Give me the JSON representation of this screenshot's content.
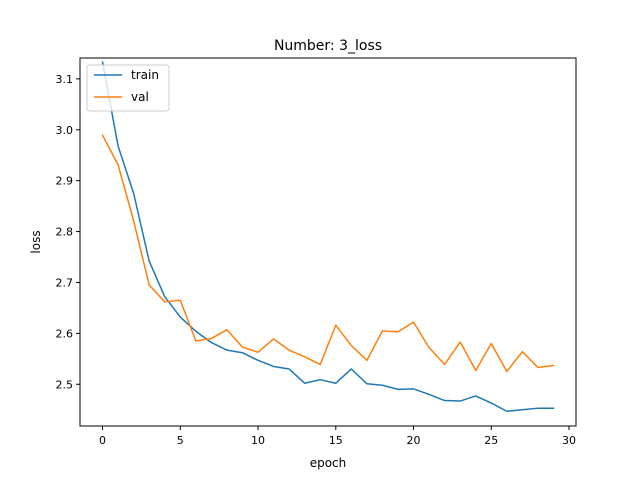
{
  "chart_data": {
    "type": "line",
    "title": "Number: 3_loss",
    "xlabel": "epoch",
    "ylabel": "loss",
    "xlim": [
      -1.45,
      30.45
    ],
    "ylim": [
      2.418,
      3.141
    ],
    "xticks": [
      0,
      5,
      10,
      15,
      20,
      25,
      30
    ],
    "yticks": [
      2.5,
      2.6,
      2.7,
      2.8,
      2.9,
      3.0,
      3.1
    ],
    "xtick_labels": [
      "0",
      "5",
      "10",
      "15",
      "20",
      "25",
      "30"
    ],
    "ytick_labels": [
      "2.5",
      "2.6",
      "2.7",
      "2.8",
      "2.9",
      "3.0",
      "3.1"
    ],
    "grid": false,
    "legend_position": "top-left",
    "x": [
      0,
      1,
      2,
      3,
      4,
      5,
      6,
      7,
      8,
      9,
      10,
      11,
      12,
      13,
      14,
      15,
      16,
      17,
      18,
      19,
      20,
      21,
      22,
      23,
      24,
      25,
      26,
      27,
      28,
      29
    ],
    "series": [
      {
        "name": "train",
        "color": "#1f77b4",
        "values": [
          3.133,
          2.968,
          2.875,
          2.742,
          2.672,
          2.632,
          2.604,
          2.582,
          2.567,
          2.562,
          2.547,
          2.535,
          2.53,
          2.502,
          2.509,
          2.502,
          2.53,
          2.501,
          2.498,
          2.49,
          2.491,
          2.48,
          2.468,
          2.467,
          2.477,
          2.463,
          2.447,
          2.45,
          2.453,
          2.453
        ]
      },
      {
        "name": "val",
        "color": "#ff7f0e",
        "values": [
          2.989,
          2.931,
          2.821,
          2.695,
          2.662,
          2.665,
          2.585,
          2.59,
          2.607,
          2.573,
          2.563,
          2.589,
          2.567,
          2.554,
          2.539,
          2.616,
          2.576,
          2.547,
          2.605,
          2.603,
          2.622,
          2.572,
          2.539,
          2.583,
          2.527,
          2.58,
          2.525,
          2.564,
          2.533,
          2.537
        ]
      }
    ]
  }
}
